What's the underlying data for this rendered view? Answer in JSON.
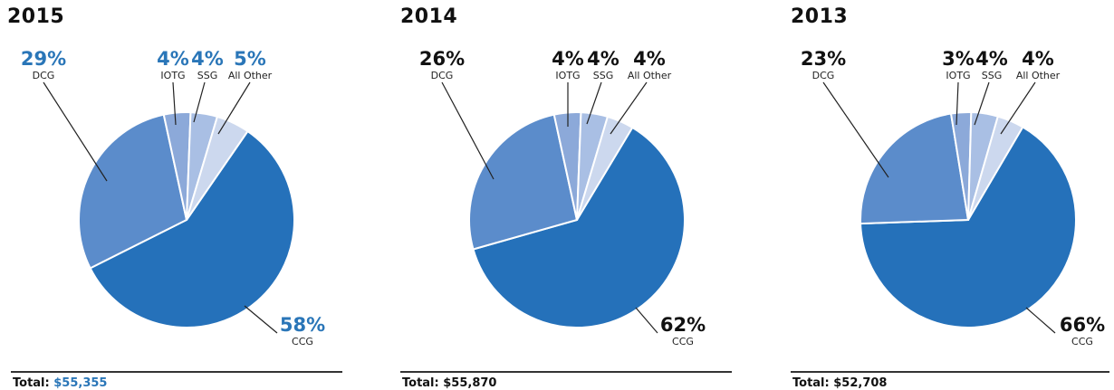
{
  "colors": {
    "CCG": "#2571ba",
    "DCG": "#5b8ccb",
    "IOTG": "#8ca9d9",
    "SSG": "#a9bfe4",
    "All Other": "#ccd8ee",
    "highlight_text": "#2a76b8",
    "normal_text": "#111111"
  },
  "chart_data": [
    {
      "type": "pie",
      "title": "2015",
      "slices": [
        {
          "label": "CCG",
          "value": 58,
          "pct_text": "58%"
        },
        {
          "label": "DCG",
          "value": 29,
          "pct_text": "29%"
        },
        {
          "label": "IOTG",
          "value": 4,
          "pct_text": "4%"
        },
        {
          "label": "SSG",
          "value": 4,
          "pct_text": "4%"
        },
        {
          "label": "All Other",
          "value": 5,
          "pct_text": "5%"
        }
      ],
      "total_label": "Total:",
      "total_value": "$55,355",
      "highlight": true
    },
    {
      "type": "pie",
      "title": "2014",
      "slices": [
        {
          "label": "CCG",
          "value": 62,
          "pct_text": "62%"
        },
        {
          "label": "DCG",
          "value": 26,
          "pct_text": "26%"
        },
        {
          "label": "IOTG",
          "value": 4,
          "pct_text": "4%"
        },
        {
          "label": "SSG",
          "value": 4,
          "pct_text": "4%"
        },
        {
          "label": "All Other",
          "value": 4,
          "pct_text": "4%"
        }
      ],
      "total_label": "Total:",
      "total_value": "$55,870",
      "highlight": false
    },
    {
      "type": "pie",
      "title": "2013",
      "slices": [
        {
          "label": "CCG",
          "value": 66,
          "pct_text": "66%"
        },
        {
          "label": "DCG",
          "value": 23,
          "pct_text": "23%"
        },
        {
          "label": "IOTG",
          "value": 3,
          "pct_text": "3%"
        },
        {
          "label": "SSG",
          "value": 4,
          "pct_text": "4%"
        },
        {
          "label": "All Other",
          "value": 4,
          "pct_text": "4%"
        }
      ],
      "total_label": "Total:",
      "total_value": "$52,708",
      "highlight": false
    }
  ]
}
